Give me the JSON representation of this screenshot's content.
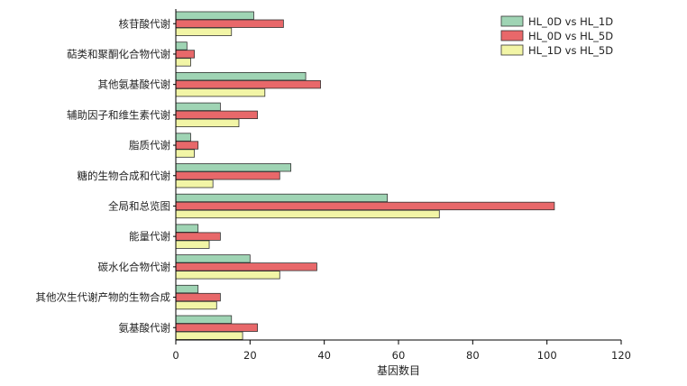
{
  "chart_data": {
    "type": "bar",
    "orientation": "horizontal",
    "categories": [
      "核苷酸代谢",
      "萜类和聚酮化合物代谢",
      "其他氨基酸代谢",
      "辅助因子和维生素代谢",
      "脂质代谢",
      "糖的生物合成和代谢",
      "全局和总览图",
      "能量代谢",
      "碳水化合物代谢",
      "其他次生代谢产物的生物合成",
      "氨基酸代谢"
    ],
    "series": [
      {
        "name": "HL_0D vs HL_1D",
        "color": "#9fd4b4",
        "values": [
          21,
          3,
          35,
          12,
          4,
          31,
          57,
          6,
          20,
          6,
          15
        ]
      },
      {
        "name": "HL_0D vs HL_5D",
        "color": "#e8686a",
        "values": [
          29,
          5,
          39,
          22,
          6,
          28,
          102,
          12,
          38,
          12,
          22
        ]
      },
      {
        "name": "HL_1D vs HL_5D",
        "color": "#f2f5a6",
        "values": [
          15,
          4,
          24,
          17,
          5,
          10,
          71,
          9,
          28,
          11,
          18
        ]
      }
    ],
    "xlabel": "基因数目",
    "ylabel": "",
    "xlim": [
      0,
      120
    ],
    "xticks": [
      0,
      20,
      40,
      60,
      80,
      100,
      120
    ],
    "grid": false,
    "legend_position": "top-right"
  }
}
